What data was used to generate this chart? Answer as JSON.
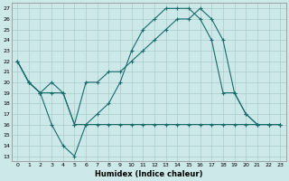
{
  "xlabel": "Humidex (Indice chaleur)",
  "bg_color": "#cce8e8",
  "grid_color": "#aacccc",
  "line_color": "#1a6b6b",
  "xlim": [
    -0.5,
    23.5
  ],
  "ylim": [
    12.5,
    27.5
  ],
  "xticks": [
    0,
    1,
    2,
    3,
    4,
    5,
    6,
    7,
    8,
    9,
    10,
    11,
    12,
    13,
    14,
    15,
    16,
    17,
    18,
    19,
    20,
    21,
    22,
    23
  ],
  "yticks": [
    13,
    14,
    15,
    16,
    17,
    18,
    19,
    20,
    21,
    22,
    23,
    24,
    25,
    26,
    27
  ],
  "line1_x": [
    0,
    1,
    2,
    3,
    4,
    5,
    6,
    7,
    8,
    9,
    10,
    11,
    12,
    13,
    14,
    15,
    16,
    17,
    18,
    19,
    20,
    21,
    22,
    23
  ],
  "line1_y": [
    22,
    20,
    19,
    16,
    14,
    13,
    16,
    17,
    18,
    20,
    23,
    25,
    26,
    27,
    27,
    27,
    26,
    24,
    19,
    19,
    17,
    16,
    16,
    16
  ],
  "line2_x": [
    0,
    1,
    2,
    3,
    4,
    5,
    6,
    7,
    8,
    9,
    10,
    11,
    12,
    13,
    14,
    15,
    16,
    17,
    18,
    19,
    20,
    21,
    22,
    23
  ],
  "line2_y": [
    22,
    20,
    19,
    19,
    19,
    16,
    16,
    16,
    16,
    16,
    16,
    16,
    16,
    16,
    16,
    16,
    16,
    16,
    16,
    16,
    16,
    16,
    16,
    16
  ],
  "line3_x": [
    0,
    1,
    2,
    3,
    4,
    5,
    6,
    7,
    8,
    9,
    10,
    11,
    12,
    13,
    14,
    15,
    16,
    17,
    18,
    19,
    20,
    21,
    22,
    23
  ],
  "line3_y": [
    22,
    20,
    19,
    20,
    19,
    16,
    20,
    20,
    21,
    21,
    22,
    23,
    24,
    25,
    26,
    26,
    27,
    26,
    24,
    19,
    17,
    16,
    16,
    16
  ]
}
